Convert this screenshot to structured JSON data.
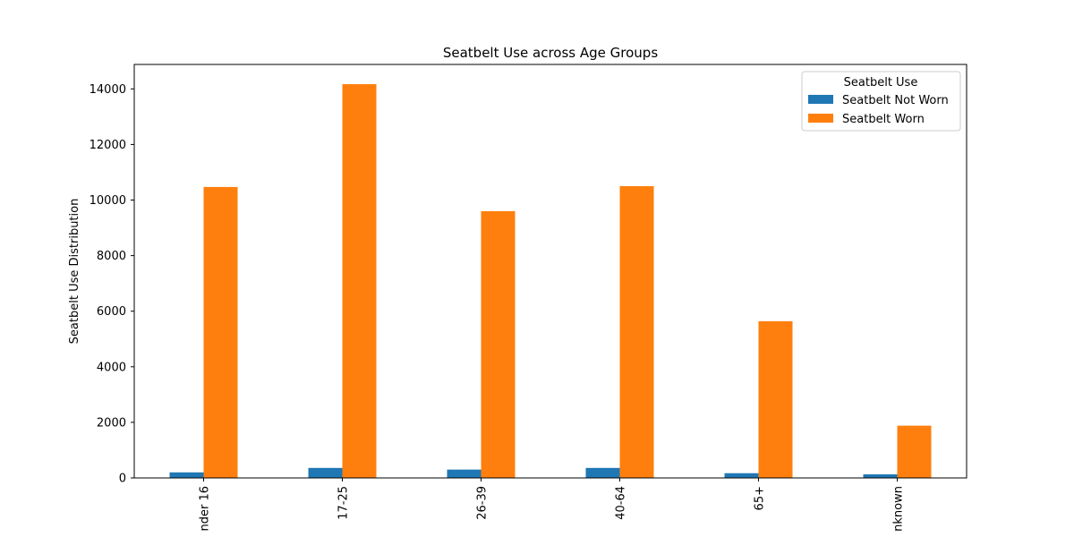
{
  "chart_data": {
    "type": "bar",
    "title": "Seatbelt Use across Age Groups",
    "xlabel": "",
    "ylabel": "Seatbelt Use Distribution",
    "categories": [
      "nder 16",
      "17-25",
      "26-39",
      "40-64",
      "65+",
      "nknown"
    ],
    "series": [
      {
        "name": "Seatbelt Not Worn",
        "color": "#1f77b4",
        "values": [
          200,
          360,
          300,
          360,
          170,
          130
        ]
      },
      {
        "name": "Seatbelt Worn",
        "color": "#ff7f0e",
        "values": [
          10470,
          14170,
          9600,
          10500,
          5640,
          1880
        ]
      }
    ],
    "ylim": [
      0,
      14880
    ],
    "yticks": [
      0,
      2000,
      4000,
      6000,
      8000,
      10000,
      12000,
      14000
    ],
    "legend": {
      "title": "Seatbelt Use",
      "placement": "top-right"
    },
    "grid": false
  }
}
